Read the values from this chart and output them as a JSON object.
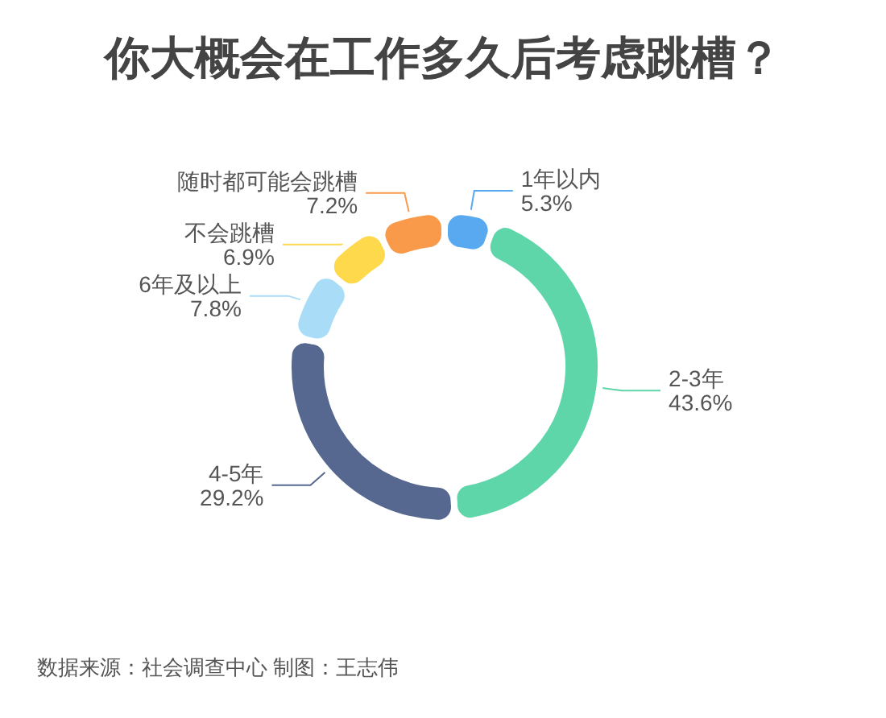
{
  "chart_data": {
    "type": "donut",
    "title": "你大概会在工作多久后考虑跳槽？",
    "annotations": [
      "数据来源：社会调查中心 制图：王志伟"
    ],
    "categories": [
      "1年以内",
      "2-3年",
      "4-5年",
      "6年及以上",
      "不会跳槽",
      "随时都可能会跳槽"
    ],
    "values": [
      5.3,
      43.6,
      29.2,
      7.8,
      6.9,
      7.2
    ],
    "value_labels": [
      "5.3%",
      "43.6%",
      "29.2%",
      "7.8%",
      "6.9%",
      "7.2%"
    ],
    "colors": [
      "#58a9f0",
      "#5ed6a9",
      "#56688f",
      "#a9ddf7",
      "#fdd94b",
      "#f99a4a"
    ]
  }
}
